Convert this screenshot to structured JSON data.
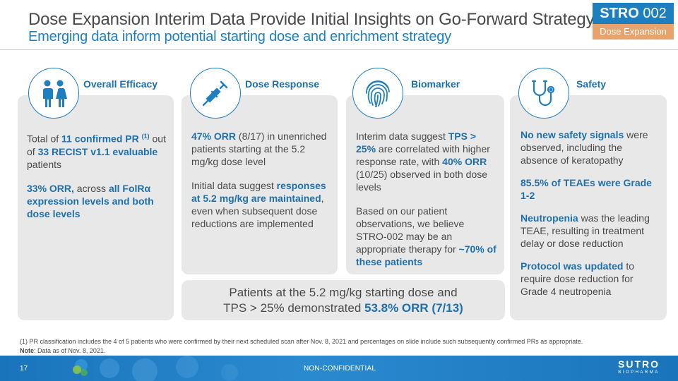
{
  "header": {
    "title": "Dose Expansion Interim Data Provide Initial Insights on Go-Forward Strategy",
    "subtitle": "Emerging data inform potential starting dose and enrichment strategy",
    "badge_main": "STRO",
    "badge_num": "002",
    "badge_sub": "Dose Expansion"
  },
  "columns": [
    {
      "heading": "Overall Efficacy",
      "icon": "people-icon",
      "p1": [
        "Total of ",
        "11 confirmed PR ",
        "(1)",
        " out of ",
        "33 RECIST v1.1 evaluable",
        " patients"
      ],
      "p2": [
        "33% ORR,",
        " across ",
        "all FolRα expression levels and both dose levels"
      ]
    },
    {
      "heading": "Dose Response",
      "icon": "syringe-icon",
      "p1": [
        "47% ORR",
        " (8/17) in unenriched patients starting at the 5.2 mg/kg dose level"
      ],
      "p2": [
        "Initial data suggest ",
        "responses at 5.2 mg/kg are maintained",
        ", even when subsequent dose reductions are implemented"
      ]
    },
    {
      "heading": "Biomarker",
      "icon": "fingerprint-icon",
      "p1": [
        "Interim data suggest ",
        "TPS > 25%",
        " are correlated with higher response rate, with ",
        "40% ORR",
        " (10/25) observed in both dose levels"
      ],
      "p2": [
        "Based on our patient observations, we believe STRO-002 may be an appropriate therapy for ",
        "~70% of these patients"
      ]
    },
    {
      "heading": "Safety",
      "icon": "stethoscope-icon",
      "p1": [
        "No new safety signals",
        " were observed, including the absence of keratopathy"
      ],
      "p2": [
        "85.5% of TEAEs were Grade 1-2"
      ],
      "p3": [
        "Neutropenia",
        " was the leading TEAE, resulting in treatment delay or dose reduction"
      ],
      "p4": [
        "Protocol was updated",
        " to require dose reduction for Grade 4 neutropenia"
      ]
    }
  ],
  "summary": {
    "line1": "Patients at the 5.2 mg/kg starting dose and",
    "line2_pre": "TPS > 25% demonstrated ",
    "line2_hl": "53.8% ORR (7/13)"
  },
  "footnote": {
    "line1": "(1) PR classification includes the 4 of 5 patients who were confirmed by their next scheduled scan after Nov. 8, 2021 and percentages on slide include such subsequently confirmed PRs as appropriate.",
    "note_label": "Note",
    "note_text": ": Data as of Nov. 8, 2021."
  },
  "footer": {
    "page_number": "17",
    "classification": "NON-CONFIDENTIAL",
    "logo_main": "SUTRO",
    "logo_sub": "BIOPHARMA"
  },
  "colors": {
    "accent_blue": "#1e7fc0",
    "heading_blue": "#1e6fad",
    "badge_orange": "#e8a26a",
    "card_gray": "#e8e8e8"
  }
}
